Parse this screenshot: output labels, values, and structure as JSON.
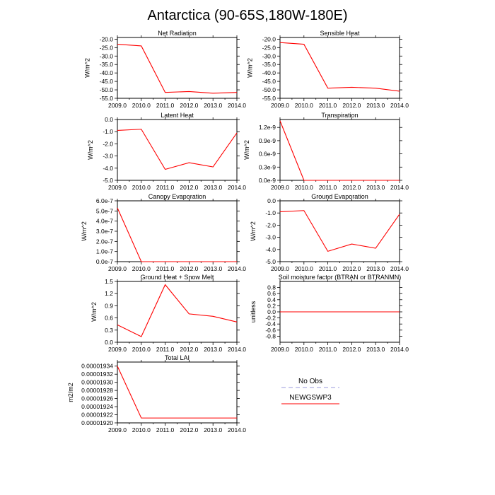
{
  "title": "Antarctica (90-65S,180W-180E)",
  "colors": {
    "series": "#ff0000",
    "obs": "#9999dd",
    "axis": "#000000"
  },
  "legend": {
    "placement": "bottom-right",
    "entries": [
      {
        "label": "No Obs",
        "style": "dashed",
        "color": "#9999dd"
      },
      {
        "label": "NEWGSWP3",
        "style": "solid",
        "color": "#ff0000"
      }
    ]
  },
  "chart_data": [
    {
      "type": "line",
      "title": "Net Radiation",
      "ylabel": "W/m^2",
      "x": [
        2009,
        2010,
        2011,
        2012,
        2013,
        2014
      ],
      "xticks": [
        "2009.0",
        "2010.0",
        "2011.0",
        "2012.0",
        "2013.0",
        "2014.0"
      ],
      "yticks": [
        -55,
        -50,
        -45,
        -40,
        -35,
        -30,
        -25,
        -20
      ],
      "ytick_labels": [
        "-55.0",
        "-50.0",
        "-45.0",
        "-40.0",
        "-35.0",
        "-30.0",
        "-25.0",
        "-20.0"
      ],
      "ylim": [
        -55,
        -19
      ],
      "series": [
        {
          "name": "NEWGSWP3",
          "values": [
            -23.0,
            -24.0,
            -51.5,
            -51.0,
            -52.0,
            -51.5
          ]
        }
      ]
    },
    {
      "type": "line",
      "title": "Sensible Heat",
      "ylabel": "W/m^2",
      "x": [
        2009,
        2010,
        2011,
        2012,
        2013,
        2014
      ],
      "xticks": [
        "2009.0",
        "2010.0",
        "2011.0",
        "2012.0",
        "2013.0",
        "2014.0"
      ],
      "yticks": [
        -55,
        -50,
        -45,
        -40,
        -35,
        -30,
        -25,
        -20
      ],
      "ytick_labels": [
        "-55.0",
        "-50.0",
        "-45.0",
        "-40.0",
        "-35.0",
        "-30.0",
        "-25.0",
        "-20.0"
      ],
      "ylim": [
        -55,
        -19
      ],
      "series": [
        {
          "name": "NEWGSWP3",
          "values": [
            -22.0,
            -23.0,
            -49.0,
            -48.5,
            -49.0,
            -50.8
          ]
        }
      ]
    },
    {
      "type": "line",
      "title": "Latent Heat",
      "ylabel": "W/m^2",
      "x": [
        2009,
        2010,
        2011,
        2012,
        2013,
        2014
      ],
      "xticks": [
        "2009.0",
        "2010.0",
        "2011.0",
        "2012.0",
        "2013.0",
        "2014.0"
      ],
      "yticks": [
        -5,
        -4,
        -3,
        -2,
        -1,
        0
      ],
      "ytick_labels": [
        "-5.0",
        "-4.0",
        "-3.0",
        "-2.0",
        "-1.0",
        "0.0"
      ],
      "ylim": [
        -5,
        0
      ],
      "series": [
        {
          "name": "NEWGSWP3",
          "values": [
            -0.9,
            -0.8,
            -4.1,
            -3.55,
            -3.9,
            -1.1
          ]
        }
      ]
    },
    {
      "type": "line",
      "title": "Transpiration",
      "ylabel": "W/m^2",
      "x": [
        2009,
        2010,
        2011,
        2012,
        2013,
        2014
      ],
      "xticks": [
        "2009.0",
        "2010.0",
        "2011.0",
        "2012.0",
        "2013.0",
        "2014.0"
      ],
      "yticks": [
        0,
        3e-10,
        6e-10,
        9e-10,
        1.2e-09
      ],
      "ytick_labels": [
        "0.0e-9",
        "0.3e-9",
        "0.6e-9",
        "0.9e-9",
        "1.2e-9"
      ],
      "ylim": [
        0,
        1.38e-09
      ],
      "series": [
        {
          "name": "NEWGSWP3",
          "values": [
            1.35e-09,
            0,
            0,
            0,
            0,
            0
          ]
        }
      ]
    },
    {
      "type": "line",
      "title": "Canopy Evaporation",
      "ylabel": "W/m^2",
      "x": [
        2009,
        2010,
        2011,
        2012,
        2013,
        2014
      ],
      "xticks": [
        "2009.0",
        "2010.0",
        "2011.0",
        "2012.0",
        "2013.0",
        "2014.0"
      ],
      "yticks": [
        0,
        1e-07,
        2e-07,
        3e-07,
        4e-07,
        5e-07,
        6e-07
      ],
      "ytick_labels": [
        "0.0e-7",
        "1.0e-7",
        "2.0e-7",
        "3.0e-7",
        "4.0e-7",
        "5.0e-7",
        "6.0e-7"
      ],
      "ylim": [
        0,
        6e-07
      ],
      "series": [
        {
          "name": "NEWGSWP3",
          "values": [
            5.3e-07,
            0,
            0,
            0,
            0,
            0
          ]
        }
      ]
    },
    {
      "type": "line",
      "title": "Ground Evaporation",
      "ylabel": "W/m^2",
      "x": [
        2009,
        2010,
        2011,
        2012,
        2013,
        2014
      ],
      "xticks": [
        "2009.0",
        "2010.0",
        "2011.0",
        "2012.0",
        "2013.0",
        "2014.0"
      ],
      "yticks": [
        -5,
        -4,
        -3,
        -2,
        -1,
        0
      ],
      "ytick_labels": [
        "-5.0",
        "-4.0",
        "-3.0",
        "-2.0",
        "-1.0",
        "0.0"
      ],
      "ylim": [
        -5,
        0
      ],
      "series": [
        {
          "name": "NEWGSWP3",
          "values": [
            -0.9,
            -0.8,
            -4.15,
            -3.55,
            -3.9,
            -1.1
          ]
        }
      ]
    },
    {
      "type": "line",
      "title": "Ground Heat + Snow Melt",
      "ylabel": "W/m^2",
      "x": [
        2009,
        2010,
        2011,
        2012,
        2013,
        2014
      ],
      "xticks": [
        "2009.0",
        "2010.0",
        "2011.0",
        "2012.0",
        "2013.0",
        "2014.0"
      ],
      "yticks": [
        0,
        0.3,
        0.6,
        0.9,
        1.2,
        1.5
      ],
      "ytick_labels": [
        "0.0",
        "0.3",
        "0.6",
        "0.9",
        "1.2",
        "1.5"
      ],
      "ylim": [
        0,
        1.5
      ],
      "series": [
        {
          "name": "NEWGSWP3",
          "values": [
            0.43,
            0.14,
            1.42,
            0.7,
            0.64,
            0.5
          ]
        }
      ]
    },
    {
      "type": "line",
      "title": "Soil moisture factor (BTRAN or BTRANMN)",
      "ylabel": "unitless",
      "x": [
        2009,
        2010,
        2011,
        2012,
        2013,
        2014
      ],
      "xticks": [
        "2009.0",
        "2010.0",
        "2011.0",
        "2012.0",
        "2013.0",
        "2014.0"
      ],
      "yticks": [
        -0.8,
        -0.6,
        -0.4,
        -0.2,
        0,
        0.2,
        0.4,
        0.6,
        0.8
      ],
      "ytick_labels": [
        "-0.8",
        "-0.6",
        "-0.4",
        "-0.2",
        "0.0",
        "0.2",
        "0.4",
        "0.6",
        "0.8"
      ],
      "ylim": [
        -1.0,
        1.0
      ],
      "series": [
        {
          "name": "NEWGSWP3",
          "values": [
            0,
            0,
            0,
            0,
            0,
            0
          ]
        }
      ]
    },
    {
      "type": "line",
      "title": "Total LAI",
      "ylabel": "m2/m2",
      "x": [
        2009,
        2010,
        2011,
        2012,
        2013,
        2014
      ],
      "xticks": [
        "2009.0",
        "2010.0",
        "2011.0",
        "2012.0",
        "2013.0",
        "2014.0"
      ],
      "yticks": [
        1.92e-05,
        1.922e-05,
        1.924e-05,
        1.926e-05,
        1.928e-05,
        1.93e-05,
        1.932e-05,
        1.934e-05
      ],
      "ytick_labels": [
        "0.00001920",
        "0.00001922",
        "0.00001924",
        "0.00001926",
        "0.00001928",
        "0.00001930",
        "0.00001932",
        "0.00001934"
      ],
      "ylim": [
        1.92e-05,
        1.935e-05
      ],
      "series": [
        {
          "name": "NEWGSWP3",
          "values": [
            1.934e-05,
            1.9212e-05,
            1.9212e-05,
            1.9212e-05,
            1.9212e-05,
            1.9212e-05
          ]
        }
      ]
    }
  ]
}
